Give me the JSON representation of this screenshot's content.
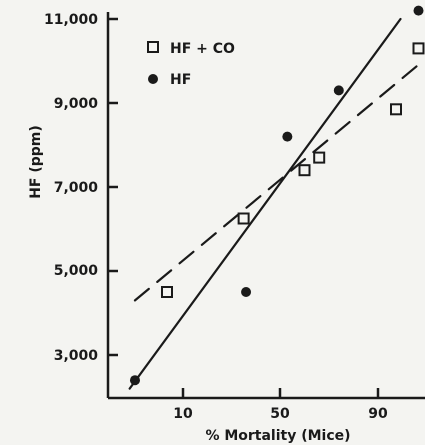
{
  "chart_data": {
    "type": "scatter",
    "title": "",
    "xlabel": "% Mortality (Mice)",
    "ylabel": "HF (ppm)",
    "x_ticks": [
      "10",
      "50",
      "90"
    ],
    "y_ticks": [
      "3,000",
      "5,000",
      "7,000",
      "9,000",
      "11,000"
    ],
    "y_tick_values": [
      3000,
      5000,
      7000,
      9000,
      11000
    ],
    "legend_position": "top-left",
    "series": [
      {
        "name": "HF + CO",
        "marker": "open-square",
        "points": [
          {
            "x": 7,
            "y": 4500
          },
          {
            "x": 35,
            "y": 6250
          },
          {
            "x": 60,
            "y": 7400
          },
          {
            "x": 66,
            "y": 7700
          },
          {
            "x": 94,
            "y": 8850
          },
          {
            "x": 99,
            "y": 10300
          }
        ],
        "fit": {
          "style": "dashed",
          "x": [
            1,
            100
          ],
          "y": [
            4300,
            10000
          ]
        }
      },
      {
        "name": "HF",
        "marker": "filled-circle",
        "points": [
          {
            "x": 1,
            "y": 2400
          },
          {
            "x": 36,
            "y": 4500
          },
          {
            "x": 53,
            "y": 8200
          },
          {
            "x": 74,
            "y": 9300
          },
          {
            "x": 99,
            "y": 11200
          }
        ],
        "fit": {
          "style": "solid",
          "x": [
            0,
            95
          ],
          "y": [
            2200,
            11000
          ]
        }
      }
    ]
  }
}
